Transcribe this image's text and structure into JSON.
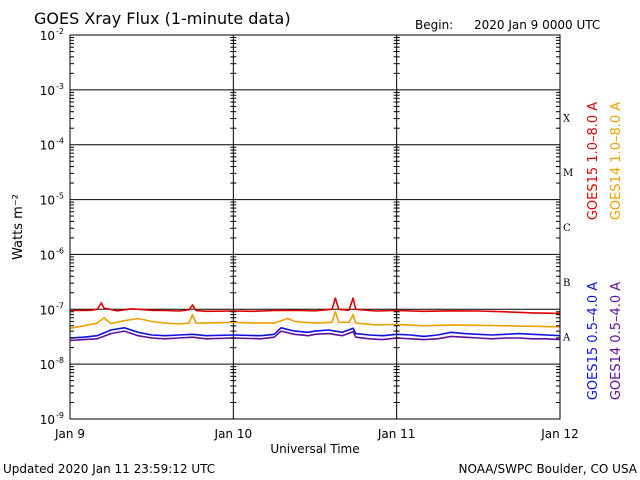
{
  "header": {
    "title": "GOES Xray Flux (1-minute data)",
    "begin_label": "Begin:",
    "begin_value": "2020 Jan 9 0000 UTC"
  },
  "footer": {
    "updated": "Updated 2020 Jan 11 23:59:12 UTC",
    "credit": "NOAA/SWPC Boulder, CO USA"
  },
  "colors": {
    "goes15_long": "#e00000",
    "goes14_long": "#f0a000",
    "goes15_short": "#1010e0",
    "goes14_short": "#6010a0"
  },
  "chart_data": {
    "type": "line",
    "title": "GOES Xray Flux (1-minute data)",
    "xlabel": "Universal Time",
    "ylabel": "Watts m⁻²",
    "yscale": "log",
    "ylim": [
      1e-09,
      0.01
    ],
    "xlim_hours": [
      0,
      72
    ],
    "x_ticks": [
      {
        "label": "Jan 9",
        "hour": 0
      },
      {
        "label": "Jan 10",
        "hour": 24
      },
      {
        "label": "Jan 11",
        "hour": 48
      },
      {
        "label": "Jan 12",
        "hour": 72
      }
    ],
    "y_ticks": [
      {
        "base": "10",
        "exp": "-9",
        "value": 1e-09
      },
      {
        "base": "10",
        "exp": "-8",
        "value": 1e-08
      },
      {
        "base": "10",
        "exp": "-7",
        "value": 1e-07
      },
      {
        "base": "10",
        "exp": "-6",
        "value": 1e-06
      },
      {
        "base": "10",
        "exp": "-5",
        "value": 1e-05
      },
      {
        "base": "10",
        "exp": "-4",
        "value": 0.0001
      },
      {
        "base": "10",
        "exp": "-3",
        "value": 0.001
      },
      {
        "base": "10",
        "exp": "-2",
        "value": 0.01
      }
    ],
    "flare_classes": [
      {
        "label": "A",
        "value": 1e-08
      },
      {
        "label": "B",
        "value": 1e-07
      },
      {
        "label": "C",
        "value": 1e-06
      },
      {
        "label": "M",
        "value": 1e-05
      },
      {
        "label": "X",
        "value": 0.0001
      }
    ],
    "legend_right_top": [
      {
        "name": "GOES15 1.0–8.0 A",
        "color": "#e00000"
      },
      {
        "name": "GOES14 1.0–8.0 A",
        "color": "#f0a000"
      }
    ],
    "legend_right_bottom": [
      {
        "name": "GOES15 0.5–4.0 A",
        "color": "#1010e0"
      },
      {
        "name": "GOES14 0.5–4.0 A",
        "color": "#6010a0"
      }
    ],
    "series": [
      {
        "name": "GOES15 1.0–8.0 A",
        "color": "#e00000",
        "hours": [
          0,
          3,
          4,
          4.6,
          5,
          7,
          9,
          12,
          14,
          16,
          17.5,
          18,
          18.5,
          20,
          24,
          27,
          30,
          33,
          36,
          38.5,
          39,
          39.5,
          41,
          41.6,
          42,
          45,
          48,
          52,
          56,
          60,
          64,
          68,
          72
        ],
        "values": [
          9.5e-08,
          9.6e-08,
          1e-07,
          1.3e-07,
          1.05e-07,
          9.4e-08,
          1.02e-07,
          9.6e-08,
          9.5e-08,
          9.3e-08,
          9.8e-08,
          1.2e-07,
          9.5e-08,
          9.2e-08,
          9.3e-08,
          9.2e-08,
          9.5e-08,
          9.6e-08,
          9.4e-08,
          1e-07,
          1.6e-07,
          1e-07,
          9.6e-08,
          1.6e-07,
          1e-07,
          9.3e-08,
          9.5e-08,
          9.2e-08,
          9.4e-08,
          9.3e-08,
          9e-08,
          8.6e-08,
          8.4e-08
        ]
      },
      {
        "name": "GOES14 1.0–8.0 A",
        "color": "#f0a000",
        "hours": [
          0,
          2,
          4,
          5,
          6,
          8,
          10,
          12,
          14,
          16,
          17.5,
          18,
          18.5,
          20,
          24,
          27,
          30,
          32,
          33,
          36,
          38.5,
          39,
          39.5,
          41,
          41.6,
          42,
          45,
          48,
          52,
          56,
          60,
          64,
          68,
          72
        ],
        "values": [
          4.5e-08,
          5e-08,
          5.6e-08,
          7e-08,
          5.5e-08,
          6.2e-08,
          6.8e-08,
          6e-08,
          5.6e-08,
          5.4e-08,
          5.6e-08,
          8e-08,
          5.6e-08,
          5.6e-08,
          5.8e-08,
          5.6e-08,
          5.6e-08,
          6.8e-08,
          6e-08,
          5.6e-08,
          5.8e-08,
          9e-08,
          5.8e-08,
          5.8e-08,
          8e-08,
          5.6e-08,
          5.2e-08,
          5.3e-08,
          5e-08,
          5.2e-08,
          5.1e-08,
          5e-08,
          4.9e-08,
          4.8e-08
        ]
      },
      {
        "name": "GOES15 0.5–4.0 A",
        "color": "#1010e0",
        "hours": [
          0,
          2,
          4,
          6,
          8,
          10,
          12,
          14,
          16,
          18,
          20,
          24,
          28,
          30,
          31,
          33,
          35,
          36,
          38,
          40,
          41.6,
          42,
          44,
          46,
          48,
          50,
          52,
          54,
          56,
          58,
          60,
          62,
          64,
          66,
          68,
          70,
          72
        ],
        "values": [
          3e-08,
          3.1e-08,
          3.3e-08,
          4.2e-08,
          4.6e-08,
          3.8e-08,
          3.4e-08,
          3.3e-08,
          3.4e-08,
          3.5e-08,
          3.3e-08,
          3.4e-08,
          3.3e-08,
          3.5e-08,
          4.6e-08,
          4e-08,
          3.8e-08,
          4e-08,
          4.2e-08,
          3.8e-08,
          4.5e-08,
          3.6e-08,
          3.4e-08,
          3.3e-08,
          3.5e-08,
          3.4e-08,
          3.2e-08,
          3.4e-08,
          3.8e-08,
          3.6e-08,
          3.5e-08,
          3.4e-08,
          3.5e-08,
          3.6e-08,
          3.5e-08,
          3.4e-08,
          3.3e-08
        ]
      },
      {
        "name": "GOES14 0.5–4.0 A",
        "color": "#6010a0",
        "hours": [
          0,
          2,
          4,
          6,
          8,
          10,
          12,
          14,
          16,
          18,
          20,
          24,
          28,
          30,
          31,
          33,
          35,
          36,
          38,
          40,
          41.6,
          42,
          44,
          46,
          48,
          50,
          52,
          54,
          56,
          58,
          60,
          62,
          64,
          66,
          68,
          70,
          72
        ],
        "values": [
          2.7e-08,
          2.8e-08,
          2.9e-08,
          3.6e-08,
          4e-08,
          3.3e-08,
          3e-08,
          2.9e-08,
          3e-08,
          3.1e-08,
          2.9e-08,
          3e-08,
          2.9e-08,
          3.1e-08,
          4e-08,
          3.5e-08,
          3.3e-08,
          3.5e-08,
          3.6e-08,
          3.3e-08,
          3.9e-08,
          3.1e-08,
          2.9e-08,
          2.8e-08,
          3e-08,
          2.9e-08,
          2.8e-08,
          2.9e-08,
          3.2e-08,
          3.1e-08,
          3e-08,
          2.9e-08,
          3e-08,
          3e-08,
          2.9e-08,
          2.9e-08,
          2.8e-08
        ]
      }
    ]
  }
}
